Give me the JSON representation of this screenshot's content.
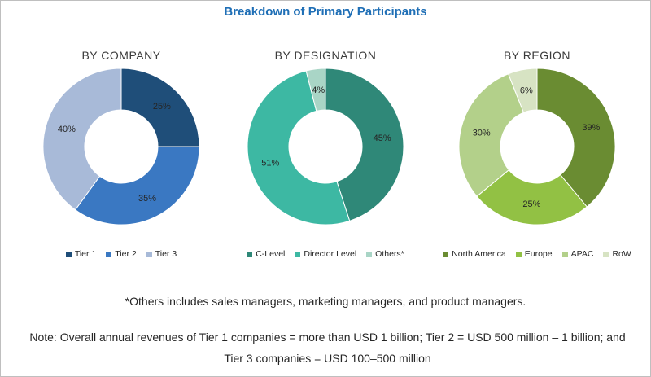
{
  "title": "Breakdown of Primary Participants",
  "chart_data": [
    {
      "type": "pie",
      "title": "BY COMPANY",
      "categories": [
        "Tier 1",
        "Tier 2",
        "Tier 3"
      ],
      "values": [
        25,
        35,
        40
      ],
      "labels": [
        "25%",
        "35%",
        "40%"
      ],
      "colors": [
        "#1f4e79",
        "#3a78c2",
        "#a8bad8"
      ],
      "legend_position": "bottom"
    },
    {
      "type": "pie",
      "title": "BY DESIGNATION",
      "categories": [
        "C-Level",
        "Director Level",
        "Others*"
      ],
      "values": [
        45,
        51,
        4
      ],
      "labels": [
        "45%",
        "51%",
        "4%"
      ],
      "colors": [
        "#2f8878",
        "#3db8a3",
        "#a9d5c6"
      ],
      "legend_position": "bottom"
    },
    {
      "type": "pie",
      "title": "BY REGION",
      "categories": [
        "North America",
        "Europe",
        "APAC",
        "RoW"
      ],
      "values": [
        39,
        25,
        30,
        6
      ],
      "labels": [
        "39%",
        "25%",
        "30%",
        "6%"
      ],
      "colors": [
        "#6a8c32",
        "#92c144",
        "#b3d08a",
        "#d7e3c3"
      ],
      "legend_position": "bottom"
    }
  ],
  "footnote": "*Others includes sales managers, marketing managers, and product managers.",
  "note": "Note: Overall annual revenues of Tier 1 companies = more than USD 1 billion; Tier 2 = USD 500 million – 1 billion; and Tier 3 companies = USD 100–500 million"
}
